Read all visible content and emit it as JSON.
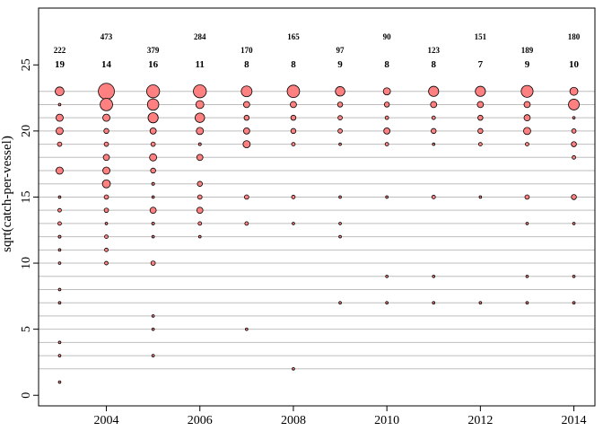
{
  "chart_data": {
    "type": "scatter",
    "ylabel": "sqrt(catch-per-vessel)",
    "xlabel": "",
    "xlim": [
      2002.55,
      2014.45
    ],
    "ylim": [
      -0.8,
      29.3
    ],
    "x_ticks": [
      "2004",
      "2006",
      "2008",
      "2010",
      "2012",
      "2014"
    ],
    "x_tick_values": [
      2004,
      2006,
      2008,
      2010,
      2012,
      2014
    ],
    "y_ticks": [
      "0",
      "5",
      "10",
      "15",
      "20",
      "25"
    ],
    "y_tick_values": [
      0,
      5,
      10,
      15,
      20,
      25
    ],
    "gridlines_y": [
      2,
      3,
      4,
      5,
      6,
      7,
      8,
      9,
      10,
      11,
      12,
      13,
      14,
      15,
      16,
      17,
      18,
      19,
      20,
      21,
      22,
      23
    ],
    "years": [
      2003,
      2004,
      2005,
      2006,
      2007,
      2008,
      2009,
      2010,
      2011,
      2012,
      2013,
      2014
    ],
    "row1_labels": [
      "222",
      "473",
      "379",
      "284",
      "170",
      "165",
      "97",
      "90",
      "123",
      "151",
      "189",
      "180"
    ],
    "row2_labels": [
      "19",
      "14",
      "16",
      "11",
      "8",
      "8",
      "9",
      "8",
      "8",
      "7",
      "9",
      "10"
    ],
    "marker_fill": "#ff8080",
    "marker_stroke": "#000000",
    "grid_color": "#bebebe",
    "points": [
      {
        "year": 2003,
        "y": 1,
        "s": 0.5
      },
      {
        "year": 2003,
        "y": 3,
        "s": 0.5
      },
      {
        "year": 2003,
        "y": 4,
        "s": 0.5
      },
      {
        "year": 2003,
        "y": 7,
        "s": 0.5
      },
      {
        "year": 2003,
        "y": 8,
        "s": 0.5
      },
      {
        "year": 2003,
        "y": 10,
        "s": 0.5
      },
      {
        "year": 2003,
        "y": 11,
        "s": 0.5
      },
      {
        "year": 2003,
        "y": 12,
        "s": 0.6
      },
      {
        "year": 2003,
        "y": 13,
        "s": 1
      },
      {
        "year": 2003,
        "y": 14,
        "s": 1
      },
      {
        "year": 2003,
        "y": 15,
        "s": 0.5
      },
      {
        "year": 2003,
        "y": 17,
        "s": 4
      },
      {
        "year": 2003,
        "y": 19,
        "s": 1.5
      },
      {
        "year": 2003,
        "y": 20,
        "s": 4
      },
      {
        "year": 2003,
        "y": 21,
        "s": 4
      },
      {
        "year": 2003,
        "y": 22,
        "s": 0.5
      },
      {
        "year": 2003,
        "y": 23,
        "s": 6
      },
      {
        "year": 2004,
        "y": 10,
        "s": 1
      },
      {
        "year": 2004,
        "y": 11,
        "s": 1
      },
      {
        "year": 2004,
        "y": 12,
        "s": 1
      },
      {
        "year": 2004,
        "y": 13,
        "s": 0.5
      },
      {
        "year": 2004,
        "y": 14,
        "s": 1.5
      },
      {
        "year": 2004,
        "y": 15,
        "s": 1.5
      },
      {
        "year": 2004,
        "y": 16,
        "s": 5
      },
      {
        "year": 2004,
        "y": 17,
        "s": 4
      },
      {
        "year": 2004,
        "y": 18,
        "s": 3
      },
      {
        "year": 2004,
        "y": 19,
        "s": 1.5
      },
      {
        "year": 2004,
        "y": 20,
        "s": 2
      },
      {
        "year": 2004,
        "y": 21,
        "s": 4
      },
      {
        "year": 2004,
        "y": 22,
        "s": 12
      },
      {
        "year": 2004,
        "y": 23,
        "s": 20
      },
      {
        "year": 2005,
        "y": 3,
        "s": 0.5
      },
      {
        "year": 2005,
        "y": 5,
        "s": 0.5
      },
      {
        "year": 2005,
        "y": 6,
        "s": 0.5
      },
      {
        "year": 2005,
        "y": 10,
        "s": 1.5
      },
      {
        "year": 2005,
        "y": 12,
        "s": 0.5
      },
      {
        "year": 2005,
        "y": 13,
        "s": 0.6
      },
      {
        "year": 2005,
        "y": 14,
        "s": 3
      },
      {
        "year": 2005,
        "y": 15,
        "s": 0.5
      },
      {
        "year": 2005,
        "y": 16,
        "s": 0.6
      },
      {
        "year": 2005,
        "y": 17,
        "s": 2
      },
      {
        "year": 2005,
        "y": 18,
        "s": 4
      },
      {
        "year": 2005,
        "y": 19,
        "s": 1.5
      },
      {
        "year": 2005,
        "y": 20,
        "s": 3
      },
      {
        "year": 2005,
        "y": 21,
        "s": 8
      },
      {
        "year": 2005,
        "y": 22,
        "s": 10
      },
      {
        "year": 2005,
        "y": 23,
        "s": 13
      },
      {
        "year": 2006,
        "y": 12,
        "s": 0.5
      },
      {
        "year": 2006,
        "y": 13,
        "s": 1
      },
      {
        "year": 2006,
        "y": 14,
        "s": 3
      },
      {
        "year": 2006,
        "y": 15,
        "s": 1.5
      },
      {
        "year": 2006,
        "y": 16,
        "s": 2
      },
      {
        "year": 2006,
        "y": 18,
        "s": 3
      },
      {
        "year": 2006,
        "y": 19,
        "s": 0.6
      },
      {
        "year": 2006,
        "y": 20,
        "s": 4
      },
      {
        "year": 2006,
        "y": 21,
        "s": 7
      },
      {
        "year": 2006,
        "y": 22,
        "s": 5
      },
      {
        "year": 2006,
        "y": 23,
        "s": 13
      },
      {
        "year": 2007,
        "y": 5,
        "s": 0.5
      },
      {
        "year": 2007,
        "y": 13,
        "s": 1
      },
      {
        "year": 2007,
        "y": 15,
        "s": 1.5
      },
      {
        "year": 2007,
        "y": 19,
        "s": 4
      },
      {
        "year": 2007,
        "y": 20,
        "s": 3
      },
      {
        "year": 2007,
        "y": 21,
        "s": 2
      },
      {
        "year": 2007,
        "y": 22,
        "s": 3
      },
      {
        "year": 2007,
        "y": 23,
        "s": 9
      },
      {
        "year": 2008,
        "y": 2,
        "s": 0.5
      },
      {
        "year": 2008,
        "y": 13,
        "s": 0.5
      },
      {
        "year": 2008,
        "y": 15,
        "s": 1
      },
      {
        "year": 2008,
        "y": 19,
        "s": 1
      },
      {
        "year": 2008,
        "y": 20,
        "s": 2
      },
      {
        "year": 2008,
        "y": 21,
        "s": 2
      },
      {
        "year": 2008,
        "y": 22,
        "s": 3
      },
      {
        "year": 2008,
        "y": 23,
        "s": 12
      },
      {
        "year": 2009,
        "y": 7,
        "s": 0.5
      },
      {
        "year": 2009,
        "y": 12,
        "s": 0.5
      },
      {
        "year": 2009,
        "y": 13,
        "s": 0.5
      },
      {
        "year": 2009,
        "y": 15,
        "s": 0.5
      },
      {
        "year": 2009,
        "y": 19,
        "s": 0.5
      },
      {
        "year": 2009,
        "y": 20,
        "s": 1.5
      },
      {
        "year": 2009,
        "y": 21,
        "s": 1.5
      },
      {
        "year": 2009,
        "y": 22,
        "s": 2
      },
      {
        "year": 2009,
        "y": 23,
        "s": 7
      },
      {
        "year": 2010,
        "y": 7,
        "s": 0.5
      },
      {
        "year": 2010,
        "y": 9,
        "s": 0.5
      },
      {
        "year": 2010,
        "y": 15,
        "s": 0.5
      },
      {
        "year": 2010,
        "y": 19,
        "s": 1
      },
      {
        "year": 2010,
        "y": 20,
        "s": 3
      },
      {
        "year": 2010,
        "y": 21,
        "s": 1
      },
      {
        "year": 2010,
        "y": 22,
        "s": 2
      },
      {
        "year": 2010,
        "y": 23,
        "s": 4
      },
      {
        "year": 2011,
        "y": 7,
        "s": 0.5
      },
      {
        "year": 2011,
        "y": 9,
        "s": 0.5
      },
      {
        "year": 2011,
        "y": 15,
        "s": 1
      },
      {
        "year": 2011,
        "y": 19,
        "s": 0.5
      },
      {
        "year": 2011,
        "y": 20,
        "s": 2
      },
      {
        "year": 2011,
        "y": 21,
        "s": 1
      },
      {
        "year": 2011,
        "y": 22,
        "s": 3
      },
      {
        "year": 2011,
        "y": 23,
        "s": 8
      },
      {
        "year": 2012,
        "y": 7,
        "s": 0.5
      },
      {
        "year": 2012,
        "y": 15,
        "s": 0.5
      },
      {
        "year": 2012,
        "y": 19,
        "s": 1
      },
      {
        "year": 2012,
        "y": 20,
        "s": 2
      },
      {
        "year": 2012,
        "y": 21,
        "s": 2
      },
      {
        "year": 2012,
        "y": 22,
        "s": 3
      },
      {
        "year": 2012,
        "y": 23,
        "s": 8
      },
      {
        "year": 2013,
        "y": 7,
        "s": 0.5
      },
      {
        "year": 2013,
        "y": 9,
        "s": 0.5
      },
      {
        "year": 2013,
        "y": 13,
        "s": 0.5
      },
      {
        "year": 2013,
        "y": 15,
        "s": 1.5
      },
      {
        "year": 2013,
        "y": 19,
        "s": 1
      },
      {
        "year": 2013,
        "y": 20,
        "s": 4
      },
      {
        "year": 2013,
        "y": 21,
        "s": 3
      },
      {
        "year": 2013,
        "y": 22,
        "s": 3
      },
      {
        "year": 2013,
        "y": 23,
        "s": 11
      },
      {
        "year": 2014,
        "y": 7,
        "s": 0.5
      },
      {
        "year": 2014,
        "y": 9,
        "s": 0.5
      },
      {
        "year": 2014,
        "y": 13,
        "s": 0.5
      },
      {
        "year": 2014,
        "y": 15,
        "s": 2
      },
      {
        "year": 2014,
        "y": 18,
        "s": 1
      },
      {
        "year": 2014,
        "y": 19,
        "s": 2
      },
      {
        "year": 2014,
        "y": 20,
        "s": 1.5
      },
      {
        "year": 2014,
        "y": 21,
        "s": 0.5
      },
      {
        "year": 2014,
        "y": 22,
        "s": 9
      },
      {
        "year": 2014,
        "y": 23,
        "s": 5
      }
    ]
  }
}
